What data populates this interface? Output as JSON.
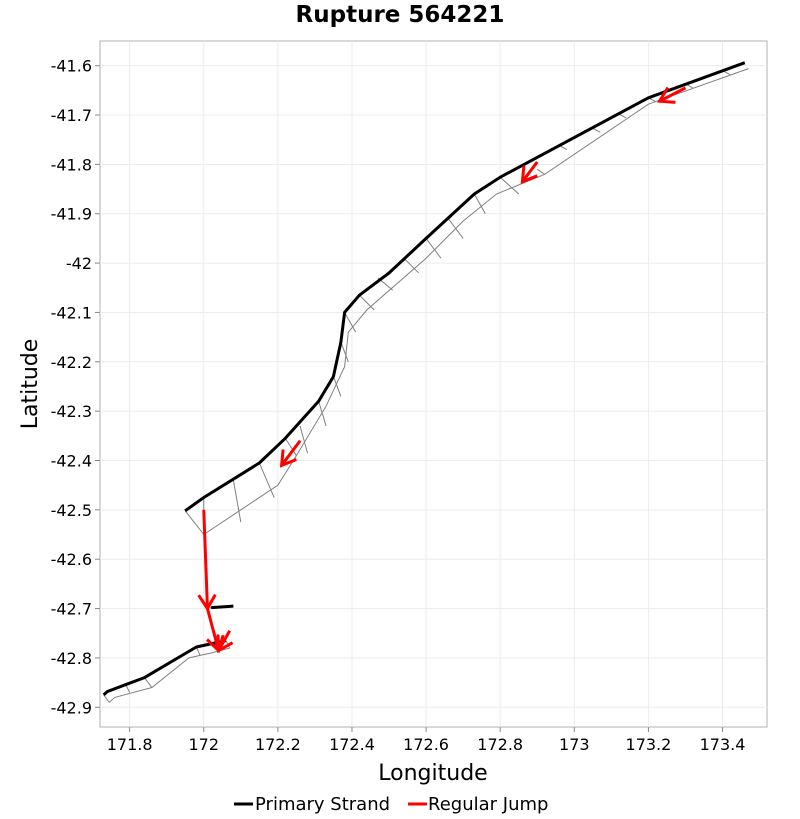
{
  "chart_data": {
    "type": "line",
    "title": "Rupture 564221",
    "xlabel": "Longitude",
    "ylabel": "Latitude",
    "xlim": [
      171.72,
      173.52
    ],
    "ylim": [
      -42.94,
      -41.55
    ],
    "xticks": [
      171.8,
      172.0,
      172.2,
      172.4,
      172.6,
      172.8,
      173.0,
      173.2,
      173.4
    ],
    "xtick_labels": [
      "171.8",
      "172",
      "172.2",
      "172.4",
      "172.6",
      "172.8",
      "173",
      "173.2",
      "173.4"
    ],
    "yticks": [
      -41.6,
      -41.7,
      -41.8,
      -41.9,
      -42.0,
      -42.1,
      -42.2,
      -42.3,
      -42.4,
      -42.5,
      -42.6,
      -42.7,
      -42.8,
      -42.9
    ],
    "ytick_labels": [
      "-41.6",
      "-41.7",
      "-41.8",
      "-41.9",
      "-42",
      "-42.1",
      "-42.2",
      "-42.3",
      "-42.4",
      "-42.5",
      "-42.6",
      "-42.7",
      "-42.8",
      "-42.9"
    ],
    "grid": true,
    "legend_position": "bottom",
    "series": [
      {
        "name": "Primary Strand",
        "color": "#000000",
        "lines": [
          [
            [
              173.46,
              -41.594
            ],
            [
              173.2,
              -41.665
            ],
            [
              172.8,
              -41.826
            ],
            [
              172.73,
              -41.86
            ],
            [
              172.6,
              -41.95
            ],
            [
              172.5,
              -42.02
            ],
            [
              172.42,
              -42.065
            ],
            [
              172.38,
              -42.1
            ],
            [
              172.37,
              -42.16
            ],
            [
              172.35,
              -42.23
            ],
            [
              172.31,
              -42.28
            ],
            [
              172.22,
              -42.355
            ],
            [
              172.15,
              -42.405
            ],
            [
              172.0,
              -42.475
            ],
            [
              171.95,
              -42.502
            ]
          ],
          [
            [
              172.02,
              -42.698
            ],
            [
              172.08,
              -42.695
            ]
          ],
          [
            [
              172.06,
              -42.765
            ],
            [
              171.98,
              -42.778
            ],
            [
              171.84,
              -42.84
            ],
            [
              171.74,
              -42.868
            ],
            [
              171.73,
              -42.875
            ]
          ]
        ]
      },
      {
        "name": "Regular Jump",
        "color": "#ff0000",
        "arrows": [
          [
            [
              173.3,
              -41.645
            ],
            [
              173.23,
              -41.672
            ]
          ],
          [
            [
              172.9,
              -41.795
            ],
            [
              172.86,
              -41.835
            ]
          ],
          [
            [
              172.26,
              -42.36
            ],
            [
              172.21,
              -42.41
            ]
          ],
          [
            [
              172.0,
              -42.5
            ],
            [
              172.01,
              -42.7
            ]
          ],
          [
            [
              172.01,
              -42.7
            ],
            [
              172.04,
              -42.785
            ]
          ],
          [
            [
              172.07,
              -42.745
            ],
            [
              172.04,
              -42.785
            ]
          ]
        ]
      }
    ],
    "fault_surface": {
      "color": "#808080",
      "outline": [
        [
          173.46,
          -41.594
        ],
        [
          173.2,
          -41.665
        ],
        [
          172.8,
          -41.826
        ],
        [
          172.73,
          -41.86
        ],
        [
          172.6,
          -41.95
        ],
        [
          172.5,
          -42.02
        ],
        [
          172.42,
          -42.065
        ],
        [
          172.38,
          -42.1
        ],
        [
          172.37,
          -42.16
        ],
        [
          172.35,
          -42.23
        ],
        [
          172.31,
          -42.28
        ],
        [
          172.22,
          -42.355
        ],
        [
          172.15,
          -42.405
        ],
        [
          172.0,
          -42.475
        ],
        [
          171.95,
          -42.502
        ],
        [
          172.0,
          -42.55
        ],
        [
          172.2,
          -42.45
        ],
        [
          172.25,
          -42.39
        ],
        [
          172.33,
          -42.29
        ],
        [
          172.38,
          -42.21
        ],
        [
          172.39,
          -42.14
        ],
        [
          172.44,
          -42.095
        ],
        [
          172.6,
          -41.99
        ],
        [
          172.7,
          -41.915
        ],
        [
          172.79,
          -41.86
        ],
        [
          172.92,
          -41.82
        ],
        [
          173.2,
          -41.678
        ],
        [
          173.47,
          -41.606
        ]
      ],
      "segments": [
        [
          [
            172.0,
            -42.475
          ],
          [
            172.0,
            -42.55
          ]
        ],
        [
          [
            172.08,
            -42.44
          ],
          [
            172.1,
            -42.525
          ]
        ],
        [
          [
            172.15,
            -42.405
          ],
          [
            172.19,
            -42.475
          ]
        ],
        [
          [
            172.22,
            -42.355
          ],
          [
            172.25,
            -42.39
          ]
        ],
        [
          [
            172.26,
            -42.33
          ],
          [
            172.28,
            -42.385
          ]
        ],
        [
          [
            172.31,
            -42.28
          ],
          [
            172.33,
            -42.33
          ]
        ],
        [
          [
            172.35,
            -42.23
          ],
          [
            172.37,
            -42.27
          ]
        ],
        [
          [
            172.37,
            -42.16
          ],
          [
            172.39,
            -42.2
          ]
        ],
        [
          [
            172.38,
            -42.1
          ],
          [
            172.41,
            -42.14
          ]
        ],
        [
          [
            172.42,
            -42.065
          ],
          [
            172.46,
            -42.095
          ]
        ],
        [
          [
            172.47,
            -42.03
          ],
          [
            172.51,
            -42.055
          ]
        ],
        [
          [
            172.54,
            -41.99
          ],
          [
            172.58,
            -42.02
          ]
        ],
        [
          [
            172.6,
            -41.95
          ],
          [
            172.64,
            -41.99
          ]
        ],
        [
          [
            172.66,
            -41.91
          ],
          [
            172.7,
            -41.95
          ]
        ],
        [
          [
            172.73,
            -41.86
          ],
          [
            172.76,
            -41.9
          ]
        ],
        [
          [
            172.8,
            -41.826
          ],
          [
            172.85,
            -41.86
          ]
        ],
        [
          [
            172.9,
            -41.81
          ],
          [
            172.92,
            -41.82
          ]
        ],
        [
          [
            172.96,
            -41.762
          ],
          [
            172.98,
            -41.77
          ]
        ],
        [
          [
            173.05,
            -41.727
          ],
          [
            173.07,
            -41.735
          ]
        ],
        [
          [
            173.12,
            -41.698
          ],
          [
            173.14,
            -41.706
          ]
        ],
        [
          [
            173.2,
            -41.665
          ],
          [
            173.22,
            -41.673
          ]
        ],
        [
          [
            173.3,
            -41.637
          ],
          [
            173.32,
            -41.645
          ]
        ],
        [
          [
            173.4,
            -41.61
          ],
          [
            173.42,
            -41.618
          ]
        ]
      ],
      "lower_outline": [
        [
          172.06,
          -42.765
        ],
        [
          172.07,
          -42.78
        ],
        [
          172.02,
          -42.79
        ],
        [
          171.99,
          -42.795
        ],
        [
          171.96,
          -42.8
        ],
        [
          171.86,
          -42.86
        ],
        [
          171.76,
          -42.88
        ],
        [
          171.745,
          -42.89
        ],
        [
          171.73,
          -42.875
        ]
      ],
      "lower_segments": [
        [
          [
            171.98,
            -42.778
          ],
          [
            171.99,
            -42.795
          ]
        ],
        [
          [
            172.03,
            -42.772
          ],
          [
            172.04,
            -42.785
          ]
        ],
        [
          [
            171.84,
            -42.84
          ],
          [
            171.86,
            -42.86
          ]
        ],
        [
          [
            171.79,
            -42.855
          ],
          [
            171.8,
            -42.87
          ]
        ],
        [
          [
            172.01,
            -42.69
          ],
          [
            172.02,
            -42.7
          ]
        ]
      ]
    }
  }
}
